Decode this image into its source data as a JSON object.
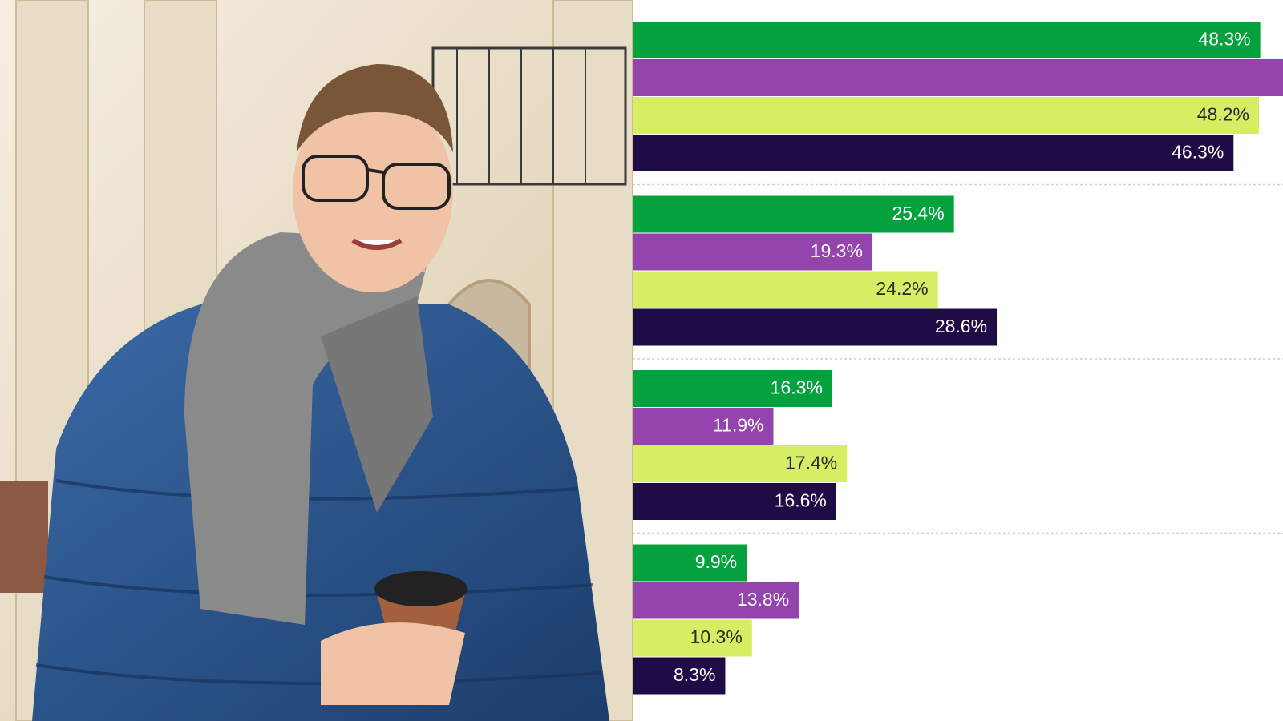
{
  "chart_data": {
    "type": "hbar",
    "categories": [
      null,
      null,
      null,
      null
    ],
    "series": [
      {
        "color": "#06a13f",
        "values": [
          48.3,
          25.4,
          16.3,
          9.9
        ],
        "value_labels": [
          "48.3%",
          "25.4%",
          "16.3%",
          "9.9%"
        ]
      },
      {
        "color": "#9344ad",
        "values": [
          52,
          19.3,
          11.9,
          13.8
        ],
        "value_labels": [
          null,
          "19.3%",
          "11.9%",
          "13.8%"
        ]
      },
      {
        "color": "#d5ee64",
        "values": [
          48.2,
          24.2,
          17.4,
          10.3
        ],
        "value_labels": [
          "48.2%",
          "24.2%",
          "17.4%",
          "10.3%"
        ]
      },
      {
        "color": "#1f0b46",
        "values": [
          46.3,
          28.6,
          16.6,
          8.3
        ],
        "value_labels": [
          "46.3%",
          "28.6%",
          "16.6%",
          "8.3%"
        ]
      }
    ],
    "xlim": [
      0,
      50
    ],
    "grid": true
  }
}
